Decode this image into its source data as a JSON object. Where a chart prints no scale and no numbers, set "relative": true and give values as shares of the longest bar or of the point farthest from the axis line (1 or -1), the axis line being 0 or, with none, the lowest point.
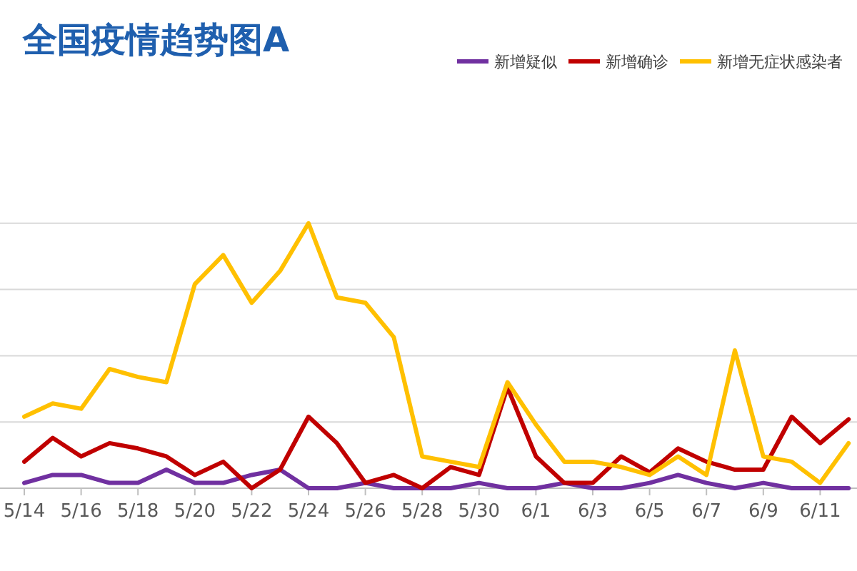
{
  "chart_data": {
    "type": "line",
    "title": "全国疫情趋势图A",
    "relative": true,
    "grid": "y",
    "legend": "top right",
    "marker": "none",
    "line_style": "solid",
    "categories": [
      "5/14",
      null,
      "5/16",
      null,
      "5/18",
      null,
      "5/20",
      null,
      "5/22",
      null,
      "5/24",
      null,
      "5/26",
      null,
      "5/28",
      null,
      "5/30",
      null,
      "6/1",
      null,
      "6/3",
      null,
      "6/5",
      null,
      "6/7",
      null,
      "6/9",
      null,
      "6/11",
      null
    ],
    "series": [
      {
        "name": "新增疑似",
        "color": "#7030a0",
        "values": [
          0.02,
          0.05,
          0.05,
          0.02,
          0.02,
          0.07,
          0.02,
          0.02,
          0.05,
          0.07,
          0,
          0,
          0.02,
          0,
          0,
          0,
          0.02,
          0,
          0,
          0.02,
          0,
          0,
          0.02,
          0.05,
          0.02,
          0,
          0.02,
          0,
          0,
          0
        ]
      },
      {
        "name": "新增确诊",
        "color": "#c00000",
        "values": [
          0.1,
          0.19,
          0.12,
          0.17,
          0.15,
          0.12,
          0.05,
          0.1,
          0,
          0.07,
          0.27,
          0.17,
          0.02,
          0.05,
          0,
          0.08,
          0.05,
          0.38,
          0.12,
          0.02,
          0.02,
          0.12,
          0.06,
          0.15,
          0.1,
          0.07,
          0.07,
          0.27,
          0.17,
          0.26
        ]
      },
      {
        "name": "新增无症状感染者",
        "color": "#ffc000",
        "values": [
          0.27,
          0.32,
          0.3,
          0.45,
          0.42,
          0.4,
          0.77,
          0.88,
          0.7,
          0.82,
          1,
          0.72,
          0.7,
          0.57,
          0.12,
          0.1,
          0.08,
          0.4,
          0.24,
          0.1,
          0.1,
          0.08,
          0.05,
          0.12,
          0.05,
          0.52,
          0.12,
          0.1,
          0.02,
          0.17
        ]
      }
    ]
  }
}
